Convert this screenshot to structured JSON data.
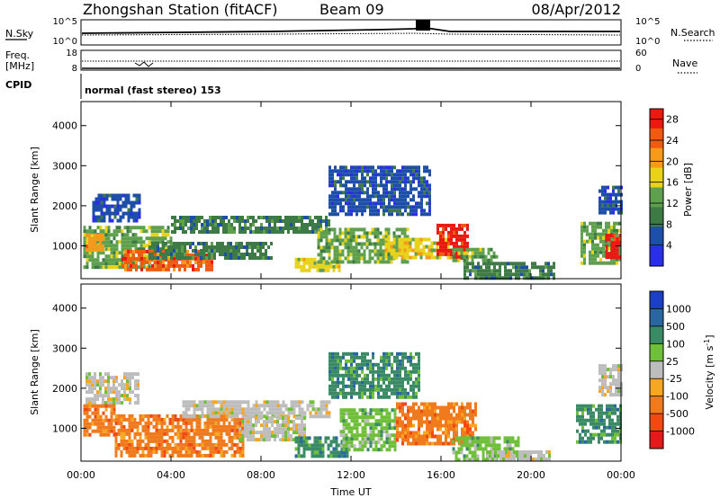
{
  "header": {
    "station": "Zhongshan Station (fitACF)",
    "beam": "Beam 09",
    "date": "08/Apr/2012"
  },
  "top_panels": {
    "nsky_label": "N.Sky",
    "nsearch_label": "N.Search",
    "noise_ticks_left": [
      "10^5",
      "10^0"
    ],
    "noise_ticks_right": [
      "10^5",
      "10^0"
    ],
    "freq_label": "Freq.",
    "freq_unit": "[MHz]",
    "freq_ticks": [
      "18",
      "8"
    ],
    "nave_label": "Nave",
    "nave_ticks": [
      "60",
      "0"
    ],
    "cpid_label": "CPID",
    "cpid_text": "normal (fast stereo) 153"
  },
  "colors": {
    "power": [
      "#2a2fe6",
      "#1e4fa8",
      "#3d7a45",
      "#5fa04e",
      "#e8d21a",
      "#f59a1c",
      "#ef5b12",
      "#ea1a12"
    ],
    "velocity": [
      "#1d3fc4",
      "#2a66a0",
      "#3a8a66",
      "#6fbf3a",
      "#bdbdbd",
      "#f5a623",
      "#f07a1c",
      "#ee4a12",
      "#e31a1c"
    ]
  },
  "chart_data": [
    {
      "type": "heatmap",
      "name": "power",
      "xlabel": "Time UT",
      "ylabel": "Slant Range [km]",
      "x_ticks": [
        "00:00",
        "04:00",
        "08:00",
        "12:00",
        "16:00",
        "20:00",
        "00:00"
      ],
      "y_ticks": [
        "1000",
        "2000",
        "3000",
        "4000"
      ],
      "xlim": [
        0,
        24
      ],
      "ylim": [
        180,
        4600
      ],
      "colorbar": {
        "label": "Power [dB]",
        "ticks": [
          "4",
          "8",
          "12",
          "16",
          "20",
          "24",
          "28"
        ],
        "range": [
          0,
          30
        ]
      },
      "regions": [
        {
          "t0": 0.1,
          "t1": 4.0,
          "r0": 500,
          "r1": 1500,
          "v": 14
        },
        {
          "t0": 1.8,
          "t1": 5.8,
          "r0": 450,
          "r1": 900,
          "v": 26
        },
        {
          "t0": 0.2,
          "t1": 1.0,
          "r0": 900,
          "r1": 1300,
          "v": 22
        },
        {
          "t0": 0.5,
          "t1": 2.6,
          "r0": 1600,
          "r1": 2300,
          "v": 7
        },
        {
          "t0": 4.0,
          "t1": 11.0,
          "r0": 1350,
          "r1": 1750,
          "v": 10
        },
        {
          "t0": 3.0,
          "t1": 8.5,
          "r0": 700,
          "r1": 1100,
          "v": 9
        },
        {
          "t0": 9.5,
          "t1": 11.5,
          "r0": 350,
          "r1": 700,
          "v": 18
        },
        {
          "t0": 10.5,
          "t1": 14.5,
          "r0": 600,
          "r1": 1450,
          "v": 12
        },
        {
          "t0": 11.0,
          "t1": 15.5,
          "r0": 1800,
          "r1": 3000,
          "v": 6
        },
        {
          "t0": 13.5,
          "t1": 16.5,
          "r0": 700,
          "r1": 1200,
          "v": 16
        },
        {
          "t0": 15.8,
          "t1": 17.2,
          "r0": 700,
          "r1": 1550,
          "v": 27
        },
        {
          "t0": 17.0,
          "t1": 21.0,
          "r0": 220,
          "r1": 600,
          "v": 9
        },
        {
          "t0": 16.5,
          "t1": 18.5,
          "r0": 600,
          "r1": 950,
          "v": 13
        },
        {
          "t0": 22.2,
          "t1": 24.0,
          "r0": 600,
          "r1": 1600,
          "v": 14
        },
        {
          "t0": 23.3,
          "t1": 24.0,
          "r0": 700,
          "r1": 1300,
          "v": 27
        },
        {
          "t0": 23.0,
          "t1": 24.0,
          "r0": 1800,
          "r1": 2500,
          "v": 6
        }
      ]
    },
    {
      "type": "heatmap",
      "name": "velocity",
      "xlabel": "Time UT",
      "ylabel": "Slant Range [km]",
      "x_ticks": [
        "00:00",
        "04:00",
        "08:00",
        "12:00",
        "16:00",
        "20:00",
        "00:00"
      ],
      "y_ticks": [
        "1000",
        "2000",
        "3000",
        "4000"
      ],
      "xlim": [
        0,
        24
      ],
      "ylim": [
        180,
        4600
      ],
      "colorbar": {
        "label": "Velocity [m s^-1]",
        "ticks": [
          "1000",
          "500",
          "100",
          "25",
          "-25",
          "-100",
          "-500",
          "-1000"
        ]
      },
      "regions": [
        {
          "t0": 0.2,
          "t1": 2.6,
          "r0": 1650,
          "r1": 2400,
          "v": 4
        },
        {
          "t0": 0.1,
          "t1": 1.5,
          "r0": 800,
          "r1": 1600,
          "v": 6
        },
        {
          "t0": 1.5,
          "t1": 7.2,
          "r0": 300,
          "r1": 1350,
          "v": 6
        },
        {
          "t0": 4.5,
          "t1": 11.0,
          "r0": 1300,
          "r1": 1700,
          "v": 4
        },
        {
          "t0": 7.0,
          "t1": 10.0,
          "r0": 700,
          "r1": 1300,
          "v": 4
        },
        {
          "t0": 9.5,
          "t1": 11.8,
          "r0": 300,
          "r1": 800,
          "v": 2
        },
        {
          "t0": 11.5,
          "t1": 14.0,
          "r0": 500,
          "r1": 1500,
          "v": 3
        },
        {
          "t0": 11.0,
          "t1": 15.0,
          "r0": 1800,
          "r1": 2900,
          "v": 2
        },
        {
          "t0": 14.0,
          "t1": 17.6,
          "r0": 650,
          "r1": 1650,
          "v": 6
        },
        {
          "t0": 16.5,
          "t1": 19.5,
          "r0": 250,
          "r1": 800,
          "v": 3
        },
        {
          "t0": 18.0,
          "t1": 20.8,
          "r0": 200,
          "r1": 450,
          "v": 4
        },
        {
          "t0": 22.0,
          "t1": 24.0,
          "r0": 700,
          "r1": 1600,
          "v": 2
        },
        {
          "t0": 23.0,
          "t1": 24.0,
          "r0": 1800,
          "r1": 2600,
          "v": 4
        }
      ]
    }
  ]
}
